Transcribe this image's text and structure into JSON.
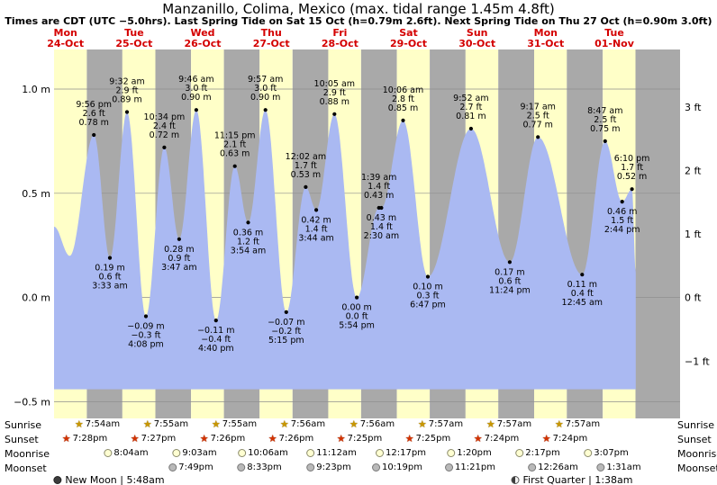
{
  "header": {
    "title": "Manzanillo, Colima, Mexico (max. tidal range 1.45m 4.8ft)",
    "subtitle": "Times are CDT (UTC −5.0hrs). Last Spring Tide on Sat 15 Oct (h=0.79m 2.6ft). Next Spring Tide on Thu 27 Oct (h=0.90m 3.0ft)"
  },
  "days": [
    {
      "name": "Mon",
      "date": "24-Oct"
    },
    {
      "name": "Tue",
      "date": "25-Oct"
    },
    {
      "name": "Wed",
      "date": "26-Oct"
    },
    {
      "name": "Thu",
      "date": "27-Oct"
    },
    {
      "name": "Fri",
      "date": "28-Oct"
    },
    {
      "name": "Sat",
      "date": "29-Oct"
    },
    {
      "name": "Sun",
      "date": "30-Oct"
    },
    {
      "name": "Mon",
      "date": "31-Oct"
    },
    {
      "name": "Tue",
      "date": "01-Nov"
    }
  ],
  "y_axis": {
    "left": [
      "1.0 m",
      "0.5 m",
      "0.0 m",
      "−0.5 m"
    ],
    "left_values": [
      1.0,
      0.5,
      0.0,
      -0.5
    ],
    "right": [
      "3 ft",
      "2 ft",
      "1 ft",
      "0 ft",
      "−1 ft"
    ],
    "right_values_ft": [
      3,
      2,
      1,
      0,
      -1
    ]
  },
  "chart_data": {
    "type": "area",
    "title": "Manzanillo, Colima, Mexico (max. tidal range 1.45m 4.8ft)",
    "x_unit": "hours from Mon 24-Oct 00:00 CDT",
    "y_unit": "m",
    "ylim_m": [
      -0.58,
      1.19
    ],
    "tide_extremes": [
      {
        "type": "start",
        "t": 8.0,
        "h": 0.34
      },
      {
        "type": "low",
        "t": 13.5,
        "h": 0.2
      },
      {
        "type": "high",
        "t": 21.93,
        "h": 0.78,
        "time": "9:56 pm",
        "ft": "2.6 ft",
        "m": "0.78 m"
      },
      {
        "type": "low",
        "t": 27.55,
        "h": 0.19,
        "time": "3:33 am",
        "ft": "0.6 ft",
        "m": "0.19 m"
      },
      {
        "type": "high",
        "t": 33.53,
        "h": 0.89,
        "time": "9:32 am",
        "ft": "2.9 ft",
        "m": "0.89 m"
      },
      {
        "type": "low",
        "t": 40.13,
        "h": -0.09,
        "time": "4:08 pm",
        "ft": "−0.3 ft",
        "m": "−0.09 m"
      },
      {
        "type": "high",
        "t": 46.57,
        "h": 0.72,
        "time": "10:34 pm",
        "ft": "2.4 ft",
        "m": "0.72 m"
      },
      {
        "type": "low",
        "t": 51.78,
        "h": 0.28,
        "time": "3:47 am",
        "ft": "0.9 ft",
        "m": "0.28 m"
      },
      {
        "type": "high",
        "t": 57.77,
        "h": 0.9,
        "time": "9:46 am",
        "ft": "3.0 ft",
        "m": "0.90 m"
      },
      {
        "type": "low",
        "t": 64.67,
        "h": -0.11,
        "time": "4:40 pm",
        "ft": "−0.4 ft",
        "m": "−0.11 m"
      },
      {
        "type": "high",
        "t": 71.25,
        "h": 0.63,
        "time": "11:15 pm",
        "ft": "2.1 ft",
        "m": "0.63 m"
      },
      {
        "type": "low",
        "t": 75.9,
        "h": 0.36,
        "time": "3:54 am",
        "ft": "1.2 ft",
        "m": "0.36 m"
      },
      {
        "type": "high",
        "t": 81.95,
        "h": 0.9,
        "time": "9:57 am",
        "ft": "3.0 ft",
        "m": "0.90 m"
      },
      {
        "type": "low",
        "t": 89.25,
        "h": -0.07,
        "time": "5:15 pm",
        "ft": "−0.2 ft",
        "m": "−0.07 m"
      },
      {
        "type": "high",
        "t": 96.03,
        "h": 0.53,
        "time": "12:02 am",
        "ft": "1.7 ft",
        "m": "0.53 m"
      },
      {
        "type": "low",
        "t": 99.73,
        "h": 0.42,
        "time": "3:44 am",
        "ft": "1.4 ft",
        "m": "0.42 m"
      },
      {
        "type": "high",
        "t": 106.08,
        "h": 0.88,
        "time": "10:05 am",
        "ft": "2.9 ft",
        "m": "0.88 m"
      },
      {
        "type": "low",
        "t": 113.9,
        "h": 0.0,
        "time": "5:54 pm",
        "ft": "0.0 ft",
        "m": "0.00 m"
      },
      {
        "type": "high",
        "t": 121.65,
        "h": 0.43,
        "time": "1:39 am",
        "ft": "1.4 ft",
        "m": "0.43 m"
      },
      {
        "type": "low",
        "t": 122.5,
        "h": 0.43,
        "time": "2:30 am",
        "ft": "1.4 ft",
        "m": "0.43 m"
      },
      {
        "type": "high",
        "t": 130.1,
        "h": 0.85,
        "time": "10:06 am",
        "ft": "2.8 ft",
        "m": "0.85 m"
      },
      {
        "type": "low",
        "t": 138.78,
        "h": 0.1,
        "time": "6:47 pm",
        "ft": "0.3 ft",
        "m": "0.10 m"
      },
      {
        "type": "high",
        "t": 153.87,
        "h": 0.81,
        "time": "9:52 am",
        "ft": "2.7 ft",
        "m": "0.81 m"
      },
      {
        "type": "low",
        "t": 167.4,
        "h": 0.17,
        "time": "11:24 pm",
        "ft": "0.6 ft",
        "m": "0.17 m"
      },
      {
        "type": "high",
        "t": 177.28,
        "h": 0.77,
        "time": "9:17 am",
        "ft": "2.5 ft",
        "m": "0.77 m"
      },
      {
        "type": "low",
        "t": 192.75,
        "h": 0.11,
        "time": "12:45 am",
        "ft": "0.4 ft",
        "m": "0.11 m"
      },
      {
        "type": "high",
        "t": 200.78,
        "h": 0.75,
        "time": "8:47 am",
        "ft": "2.5 ft",
        "m": "0.75 m"
      },
      {
        "type": "low",
        "t": 206.73,
        "h": 0.46,
        "time": "2:44 pm",
        "ft": "1.5 ft",
        "m": "0.46 m"
      },
      {
        "type": "high",
        "t": 210.17,
        "h": 0.52,
        "time": "6:10 pm",
        "ft": "1.7 ft",
        "m": "0.52 m"
      },
      {
        "type": "end",
        "t": 211.5,
        "h": 0.12
      }
    ]
  },
  "astro": {
    "sunrise": {
      "label": "Sunrise",
      "times": [
        "7:54am",
        "7:55am",
        "7:55am",
        "7:56am",
        "7:56am",
        "7:57am",
        "7:57am",
        "7:57am"
      ],
      "slots": [
        0.63,
        1.63,
        2.63,
        3.63,
        4.63,
        5.63,
        6.63,
        7.63
      ]
    },
    "sunset": {
      "label": "Sunset",
      "times": [
        "7:28pm",
        "7:27pm",
        "7:26pm",
        "7:26pm",
        "7:25pm",
        "7:25pm",
        "7:24pm",
        "7:24pm"
      ],
      "slots": [
        0.45,
        1.45,
        2.45,
        3.45,
        4.45,
        5.45,
        6.45,
        7.45
      ]
    },
    "moonrise": {
      "label": "Moonrise",
      "times": [
        "8:04am",
        "9:03am",
        "10:06am",
        "11:12am",
        "12:17pm",
        "1:20pm",
        "2:17pm",
        "3:07pm"
      ],
      "slots": [
        1.05,
        2.05,
        3.05,
        4.05,
        5.05,
        6.05,
        7.05,
        8.05
      ]
    },
    "moonset": {
      "label": "Moonset",
      "times": [
        "7:49pm",
        "8:33pm",
        "9:23pm",
        "10:19pm",
        "11:21pm",
        "12:26am",
        "1:31am"
      ],
      "slots": [
        2.0,
        3.0,
        4.0,
        5.0,
        6.07,
        7.27,
        8.23
      ]
    },
    "phases": [
      {
        "text": "New Moon | 5:48am"
      },
      {
        "text": "First Quarter | 1:38am"
      }
    ]
  },
  "colors": {
    "day_band": "#ffffc8",
    "night_band": "#a9a9a9",
    "tide_fill": "#aab9f2",
    "red": "#d40000"
  }
}
